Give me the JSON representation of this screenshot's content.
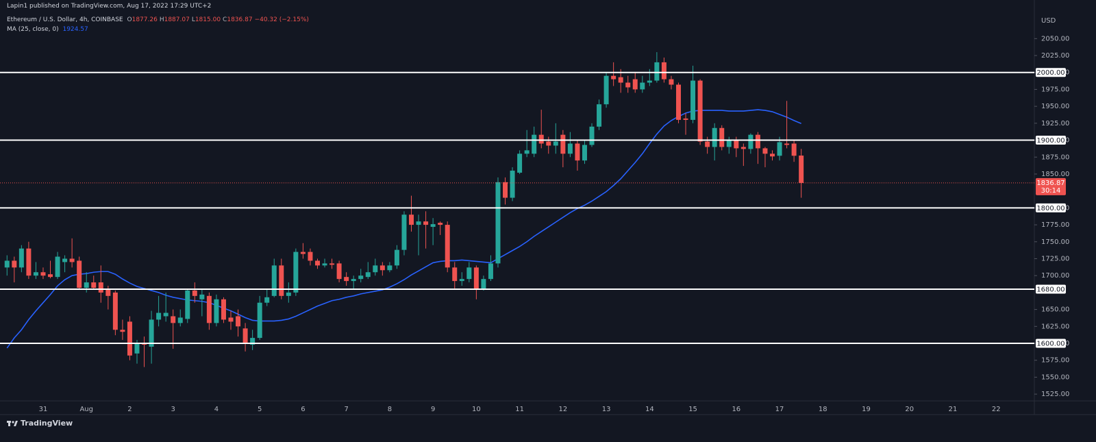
{
  "chart_data": {
    "type": "candlestick",
    "publisher": "Lapin1 published on TradingView.com, Aug 17, 2022 17:29 UTC+2",
    "symbol": "Ethereum / U.S. Dollar, 4h, COINBASE",
    "ohlc_legend": [
      {
        "key": "O",
        "label": "1877.26"
      },
      {
        "key": "H",
        "label": "1887.07"
      },
      {
        "key": "L",
        "label": "1815.00"
      },
      {
        "key": "C",
        "label": "1836.87"
      }
    ],
    "change_label": "−40.32 (−2.15%)",
    "currency": "USD",
    "brand": "TradingView",
    "last_price_label": "1836.87",
    "countdown": "30:14",
    "up_color": "#26a69a",
    "down_color": "#ef5350",
    "background": "#131722",
    "ylim": [
      1515,
      2107
    ],
    "yticks": [
      {
        "value": 2050,
        "label": "2050.00"
      },
      {
        "value": 2025,
        "label": "2025.00"
      },
      {
        "value": 2000,
        "label": "2000.00"
      },
      {
        "value": 1975,
        "label": "1975.00"
      },
      {
        "value": 1950,
        "label": "1950.00"
      },
      {
        "value": 1925,
        "label": "1925.00"
      },
      {
        "value": 1900,
        "label": "1900.00"
      },
      {
        "value": 1875,
        "label": "1875.00"
      },
      {
        "value": 1850,
        "label": "1850.00"
      },
      {
        "value": 1800,
        "label": "1800.00"
      },
      {
        "value": 1775,
        "label": "1775.00"
      },
      {
        "value": 1750,
        "label": "1750.00"
      },
      {
        "value": 1725,
        "label": "1725.00"
      },
      {
        "value": 1700,
        "label": "1700.00"
      },
      {
        "value": 1650,
        "label": "1650.00"
      },
      {
        "value": 1625,
        "label": "1625.00"
      },
      {
        "value": 1600,
        "label": "1600.00"
      },
      {
        "value": 1575,
        "label": "1575.00"
      },
      {
        "value": 1550,
        "label": "1550.00"
      },
      {
        "value": 1525,
        "label": "1525.00"
      }
    ],
    "levels": [
      {
        "value": 2000,
        "label": "2000.00"
      },
      {
        "value": 1900,
        "label": "1900.00"
      },
      {
        "value": 1800,
        "label": "1800.00"
      },
      {
        "value": 1680,
        "label": "1680.00"
      },
      {
        "value": 1600,
        "label": "1600.00"
      }
    ],
    "level_color": "#ffffff",
    "categories": [
      null,
      null,
      null,
      null,
      null,
      "31",
      null,
      null,
      null,
      null,
      null,
      "Aug",
      null,
      null,
      null,
      null,
      null,
      "2",
      null,
      null,
      null,
      null,
      null,
      "3",
      null,
      null,
      null,
      null,
      null,
      "4",
      null,
      null,
      null,
      null,
      null,
      "5",
      null,
      null,
      null,
      null,
      null,
      "6",
      null,
      null,
      null,
      null,
      null,
      "7",
      null,
      null,
      null,
      null,
      null,
      "8",
      null,
      null,
      null,
      null,
      null,
      "9",
      null,
      null,
      null,
      null,
      null,
      "10",
      null,
      null,
      null,
      null,
      null,
      "11",
      null,
      null,
      null,
      null,
      null,
      "12",
      null,
      null,
      null,
      null,
      null,
      "13",
      null,
      null,
      null,
      null,
      null,
      "14",
      null,
      null,
      null,
      null,
      null,
      "15",
      null,
      null,
      null,
      null,
      null,
      "16",
      null,
      null,
      null,
      null,
      null,
      "17",
      null,
      null,
      null,
      null,
      null,
      "18",
      null,
      null,
      null,
      null,
      null,
      "19",
      null,
      null,
      null,
      null,
      null,
      "20",
      null,
      null,
      null,
      null,
      null,
      "21",
      null,
      null,
      null,
      null,
      null,
      "22",
      null,
      null,
      null,
      null
    ],
    "open": [
      1712,
      1722,
      1712,
      1740,
      1700,
      1705,
      1702,
      1698,
      1720,
      1725,
      1722,
      1682,
      1690,
      1690,
      1680,
      1675,
      1620,
      1632,
      1585,
      1600,
      1595,
      1635,
      1640,
      1640,
      1630,
      1636,
      1678,
      1665,
      1670,
      1630,
      1665,
      1638,
      1640,
      1622,
      1598,
      1608,
      1660,
      1670,
      1715,
      1670,
      1675,
      1735,
      1735,
      1722,
      1715,
      1718,
      1718,
      1698,
      1692,
      1695,
      1698,
      1705,
      1715,
      1708,
      1715,
      1738,
      1790,
      1775,
      1780,
      1772,
      1778,
      1775,
      1712,
      1692,
      1695,
      1712,
      1680,
      1695,
      1718,
      1838,
      1815,
      1852,
      1880,
      1880,
      1908,
      1898,
      1892,
      1908,
      1880,
      1895,
      1870,
      1893,
      1920,
      1953,
      1995,
      1993,
      1985,
      1990,
      1975,
      1985,
      1988,
      2015,
      1990,
      1982,
      1932,
      1930,
      1988,
      1898,
      1890,
      1918,
      1890,
      1900,
      1890,
      1887,
      1908,
      1888,
      1880,
      1877,
      1895,
      1895,
      1877.26,
      null,
      null,
      null,
      null,
      null,
      null,
      null,
      null,
      null,
      null,
      null,
      null,
      null,
      null,
      null,
      null,
      null,
      null,
      null,
      null,
      null,
      null,
      null,
      null,
      null,
      null,
      null,
      null,
      null,
      null,
      null
    ],
    "high": [
      1730,
      1728,
      1745,
      1750,
      1720,
      1712,
      1722,
      1735,
      1730,
      1755,
      1728,
      1705,
      1700,
      1715,
      1685,
      1678,
      1635,
      1640,
      1605,
      1610,
      1648,
      1670,
      1675,
      1650,
      1650,
      1680,
      1690,
      1680,
      1675,
      1672,
      1668,
      1648,
      1650,
      1630,
      1620,
      1670,
      1680,
      1725,
      1725,
      1690,
      1740,
      1748,
      1740,
      1725,
      1725,
      1725,
      1722,
      1705,
      1700,
      1710,
      1720,
      1725,
      1720,
      1720,
      1745,
      1795,
      1818,
      1790,
      1795,
      1785,
      1780,
      1780,
      1720,
      1705,
      1720,
      1715,
      1700,
      1730,
      1845,
      1845,
      1860,
      1885,
      1915,
      1920,
      1945,
      1905,
      1925,
      1915,
      1912,
      1900,
      1900,
      1925,
      1960,
      2000,
      2015,
      2005,
      1995,
      2000,
      1995,
      2005,
      2030,
      2022,
      1995,
      1985,
      1940,
      2010,
      1990,
      1905,
      1925,
      1922,
      1905,
      1905,
      1895,
      1910,
      1912,
      1890,
      1885,
      1905,
      1958,
      1900,
      1887.07,
      null,
      null,
      null,
      null,
      null,
      null,
      null,
      null,
      null,
      null,
      null,
      null,
      null,
      null,
      null,
      null,
      null,
      null,
      null,
      null,
      null,
      null,
      null,
      null,
      null,
      null,
      null,
      null,
      null,
      null,
      null
    ],
    "low": [
      1700,
      1690,
      1705,
      1695,
      1695,
      1695,
      1696,
      1695,
      1705,
      1712,
      1680,
      1675,
      1680,
      1660,
      1650,
      1612,
      1605,
      1575,
      1570,
      1565,
      1570,
      1625,
      1632,
      1592,
      1625,
      1630,
      1660,
      1640,
      1620,
      1625,
      1630,
      1620,
      1610,
      1588,
      1590,
      1605,
      1655,
      1668,
      1665,
      1660,
      1670,
      1725,
      1715,
      1710,
      1712,
      1710,
      1690,
      1685,
      1680,
      1690,
      1695,
      1700,
      1700,
      1705,
      1710,
      1730,
      1765,
      1730,
      1740,
      1745,
      1760,
      1705,
      1680,
      1685,
      1690,
      1665,
      1678,
      1692,
      1712,
      1805,
      1810,
      1850,
      1875,
      1875,
      1888,
      1880,
      1880,
      1860,
      1875,
      1855,
      1865,
      1890,
      1915,
      1948,
      1980,
      1970,
      1970,
      1970,
      1970,
      1980,
      1985,
      1985,
      1975,
      1925,
      1908,
      1925,
      1893,
      1880,
      1870,
      1885,
      1880,
      1875,
      1862,
      1880,
      1865,
      1860,
      1870,
      1870,
      1888,
      1868,
      1815,
      null,
      null,
      null,
      null,
      null,
      null,
      null,
      null,
      null,
      null,
      null,
      null,
      null,
      null,
      null,
      null,
      null,
      null,
      null,
      null,
      null,
      null,
      null,
      null,
      null,
      null,
      null,
      null,
      null,
      null,
      null
    ],
    "close": [
      1722,
      1712,
      1740,
      1700,
      1705,
      1700,
      1698,
      1728,
      1725,
      1720,
      1682,
      1690,
      1682,
      1675,
      1670,
      1620,
      1617,
      1582,
      1600,
      1598,
      1635,
      1645,
      1645,
      1630,
      1638,
      1678,
      1670,
      1672,
      1630,
      1665,
      1635,
      1632,
      1625,
      1600,
      1608,
      1660,
      1668,
      1715,
      1670,
      1675,
      1735,
      1732,
      1722,
      1715,
      1718,
      1716,
      1695,
      1692,
      1695,
      1700,
      1705,
      1715,
      1708,
      1715,
      1738,
      1790,
      1775,
      1780,
      1775,
      1776,
      1775,
      1712,
      1692,
      1695,
      1712,
      1680,
      1695,
      1718,
      1838,
      1815,
      1855,
      1880,
      1885,
      1908,
      1895,
      1892,
      1898,
      1880,
      1895,
      1870,
      1893,
      1920,
      1953,
      1995,
      1990,
      1985,
      1978,
      1975,
      1985,
      1988,
      2015,
      1990,
      1982,
      1930,
      1930,
      1988,
      1898,
      1890,
      1918,
      1890,
      1900,
      1888,
      1887,
      1908,
      1888,
      1880,
      1876,
      1897,
      1893,
      1877,
      1836.87,
      null,
      null,
      null,
      null,
      null,
      null,
      null,
      null,
      null,
      null,
      null,
      null,
      null,
      null,
      null,
      null,
      null,
      null,
      null,
      null,
      null,
      null,
      null,
      null,
      null,
      null,
      null,
      null,
      null,
      null,
      null
    ],
    "ma": {
      "name": "MA (25, close, 0)",
      "value_label": "1924.57",
      "color": "#2962ff",
      "values": [
        1593,
        1608,
        1620,
        1635,
        1648,
        1660,
        1672,
        1685,
        1694,
        1700,
        1702,
        1703,
        1705,
        1706,
        1706,
        1702,
        1695,
        1689,
        1684,
        1681,
        1678,
        1675,
        1671,
        1668,
        1666,
        1664,
        1663,
        1662,
        1660,
        1656,
        1652,
        1648,
        1643,
        1638,
        1634,
        1633,
        1633,
        1633,
        1634,
        1636,
        1640,
        1645,
        1650,
        1655,
        1659,
        1663,
        1665,
        1668,
        1670,
        1673,
        1675,
        1677,
        1679,
        1683,
        1688,
        1694,
        1701,
        1707,
        1713,
        1719,
        1721,
        1722,
        1722,
        1723,
        1722,
        1721,
        1720,
        1719,
        1725,
        1731,
        1737,
        1743,
        1750,
        1758,
        1765,
        1772,
        1779,
        1786,
        1793,
        1799,
        1804,
        1810,
        1817,
        1824,
        1833,
        1843,
        1855,
        1867,
        1880,
        1895,
        1909,
        1921,
        1929,
        1935,
        1940,
        1943,
        1944,
        1944,
        1944,
        1944,
        1943,
        1943,
        1943,
        1944,
        1945,
        1944,
        1942,
        1938,
        1934,
        1929,
        1924.57,
        null,
        null,
        null,
        null,
        null,
        null,
        null,
        null,
        null,
        null,
        null,
        null,
        null,
        null,
        null,
        null,
        null,
        null,
        null,
        null,
        null,
        null,
        null,
        null,
        null,
        null,
        null,
        null,
        null,
        null,
        null
      ]
    }
  }
}
